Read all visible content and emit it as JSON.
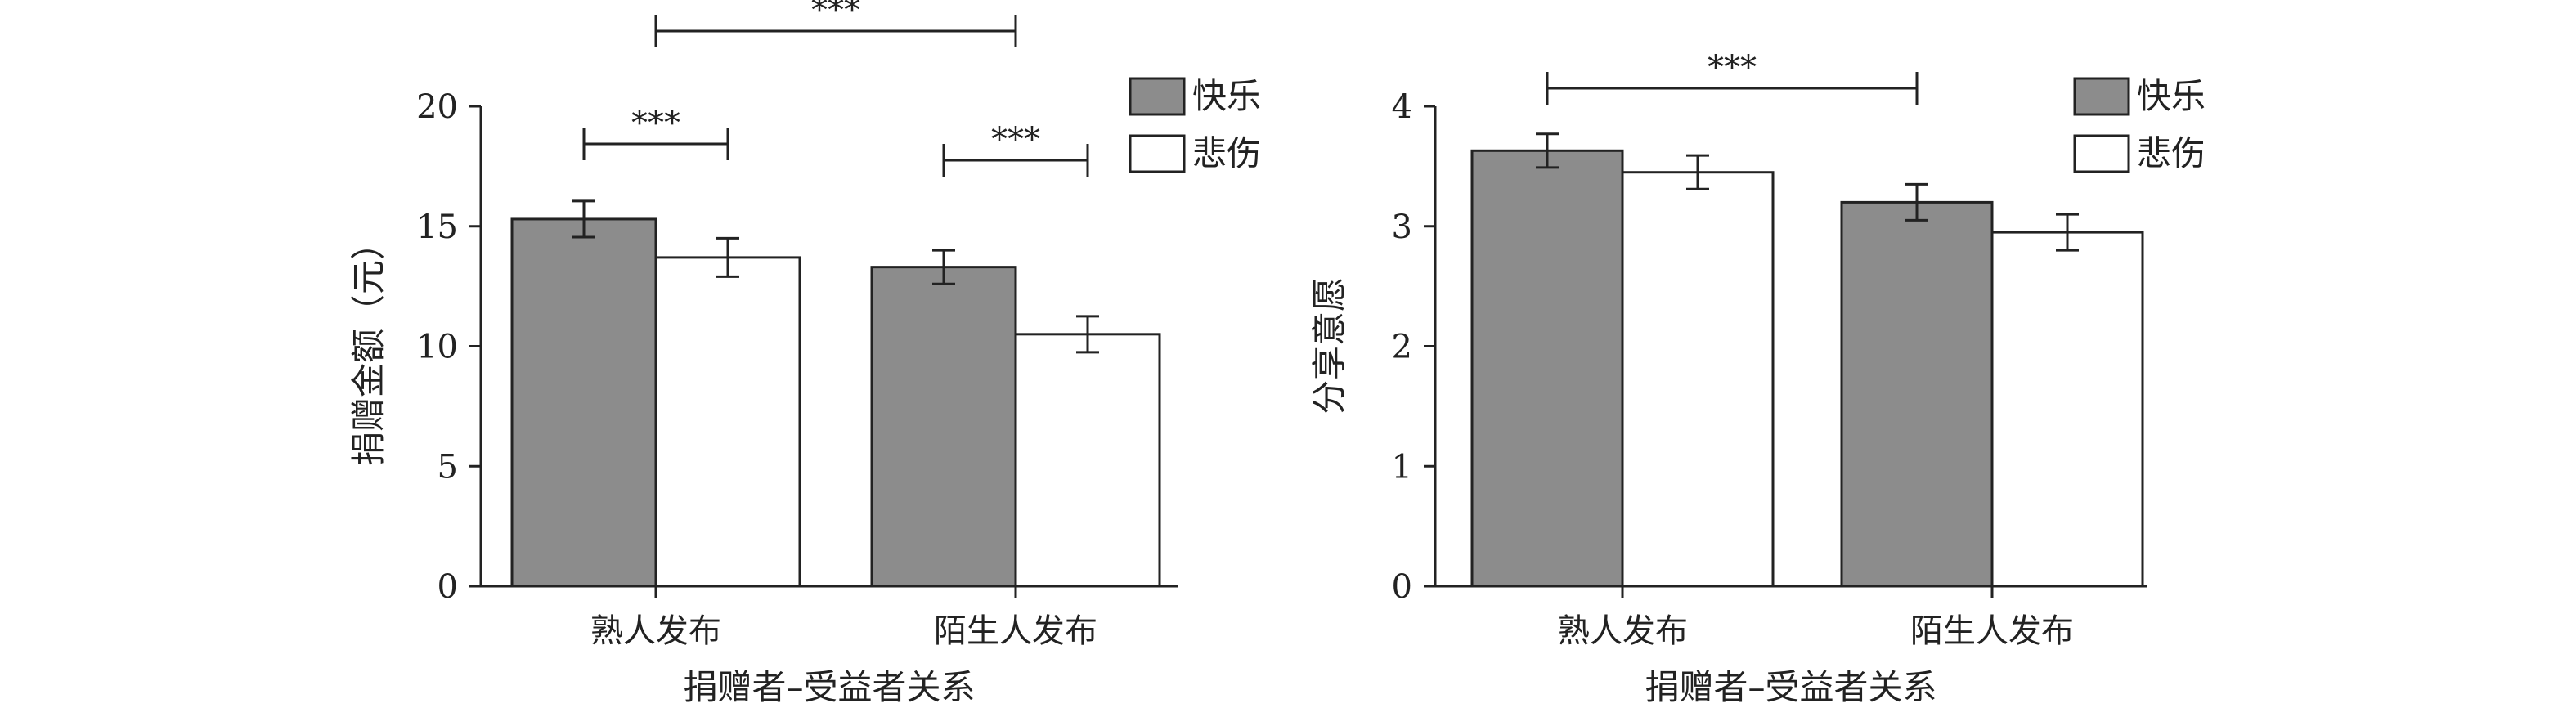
{
  "chart_data": [
    {
      "type": "bar",
      "categories": [
        "熟人发布",
        "陌生人发布"
      ],
      "series": [
        {
          "name": "快乐",
          "values": [
            15.3,
            13.3
          ],
          "errors": [
            0.75,
            0.7
          ],
          "color": "#8c8c8c"
        },
        {
          "name": "悲伤",
          "values": [
            13.7,
            10.5
          ],
          "errors": [
            0.8,
            0.75
          ],
          "color": "#ffffff"
        }
      ],
      "xlabel": "捐赠者–受益者关系",
      "ylabel": "捐赠金额（元）",
      "ylim": [
        0,
        20
      ],
      "yticks": [
        0,
        5,
        10,
        15,
        20
      ],
      "legend_position": "top-right",
      "significance": [
        {
          "from": [
            0,
            0
          ],
          "to": [
            0,
            1
          ],
          "label": "***"
        },
        {
          "from": [
            1,
            0
          ],
          "to": [
            1,
            1
          ],
          "label": "***"
        },
        {
          "from": [
            0,
            0.5
          ],
          "to": [
            1,
            0.5
          ],
          "label": "***"
        }
      ]
    },
    {
      "type": "bar",
      "categories": [
        "熟人发布",
        "陌生人发布"
      ],
      "series": [
        {
          "name": "快乐",
          "values": [
            3.63,
            3.2
          ],
          "errors": [
            0.14,
            0.15
          ],
          "color": "#8c8c8c"
        },
        {
          "name": "悲伤",
          "values": [
            3.45,
            2.95
          ],
          "errors": [
            0.14,
            0.15
          ],
          "color": "#ffffff"
        }
      ],
      "xlabel": "捐赠者–受益者关系",
      "ylabel": "分享意愿",
      "ylim": [
        0,
        4
      ],
      "yticks": [
        0,
        1,
        2,
        3,
        4
      ],
      "legend_position": "top-right",
      "significance": [
        {
          "from": [
            0,
            0
          ],
          "to": [
            1,
            0
          ],
          "label": "***"
        }
      ]
    }
  ]
}
